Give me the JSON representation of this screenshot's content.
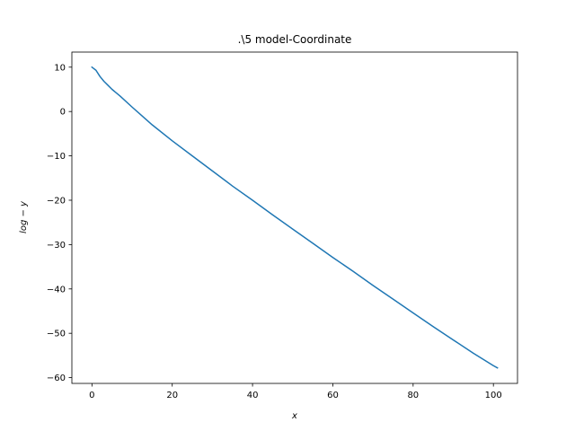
{
  "chart_data": {
    "type": "line",
    "title": ".\\5 model-Coordinate",
    "xlabel": "x",
    "ylabel": "log − y",
    "xlim": [
      -5,
      106
    ],
    "ylim": [
      -61.3,
      13.4
    ],
    "xticks": [
      0,
      20,
      40,
      60,
      80,
      100
    ],
    "yticks": [
      10,
      0,
      -10,
      -20,
      -30,
      -40,
      -50,
      -60
    ],
    "xtick_labels": [
      "0",
      "20",
      "40",
      "60",
      "80",
      "100"
    ],
    "ytick_labels": [
      "10",
      "0",
      "−10",
      "−20",
      "−30",
      "−40",
      "−50",
      "−60"
    ],
    "grid": false,
    "series": [
      {
        "color": "#1f77b4",
        "x": [
          0,
          1,
          2,
          3,
          4,
          5,
          7,
          10,
          15,
          20,
          25,
          30,
          35,
          40,
          45,
          50,
          55,
          60,
          65,
          70,
          75,
          80,
          85,
          90,
          95,
          100,
          101
        ],
        "y": [
          10.0,
          9.3,
          7.9,
          6.8,
          5.9,
          5.0,
          3.5,
          1.0,
          -3.0,
          -6.6,
          -10.0,
          -13.4,
          -16.8,
          -20.0,
          -23.3,
          -26.5,
          -29.7,
          -32.9,
          -36.0,
          -39.2,
          -42.3,
          -45.4,
          -48.5,
          -51.5,
          -54.5,
          -57.3,
          -57.8
        ]
      }
    ]
  }
}
